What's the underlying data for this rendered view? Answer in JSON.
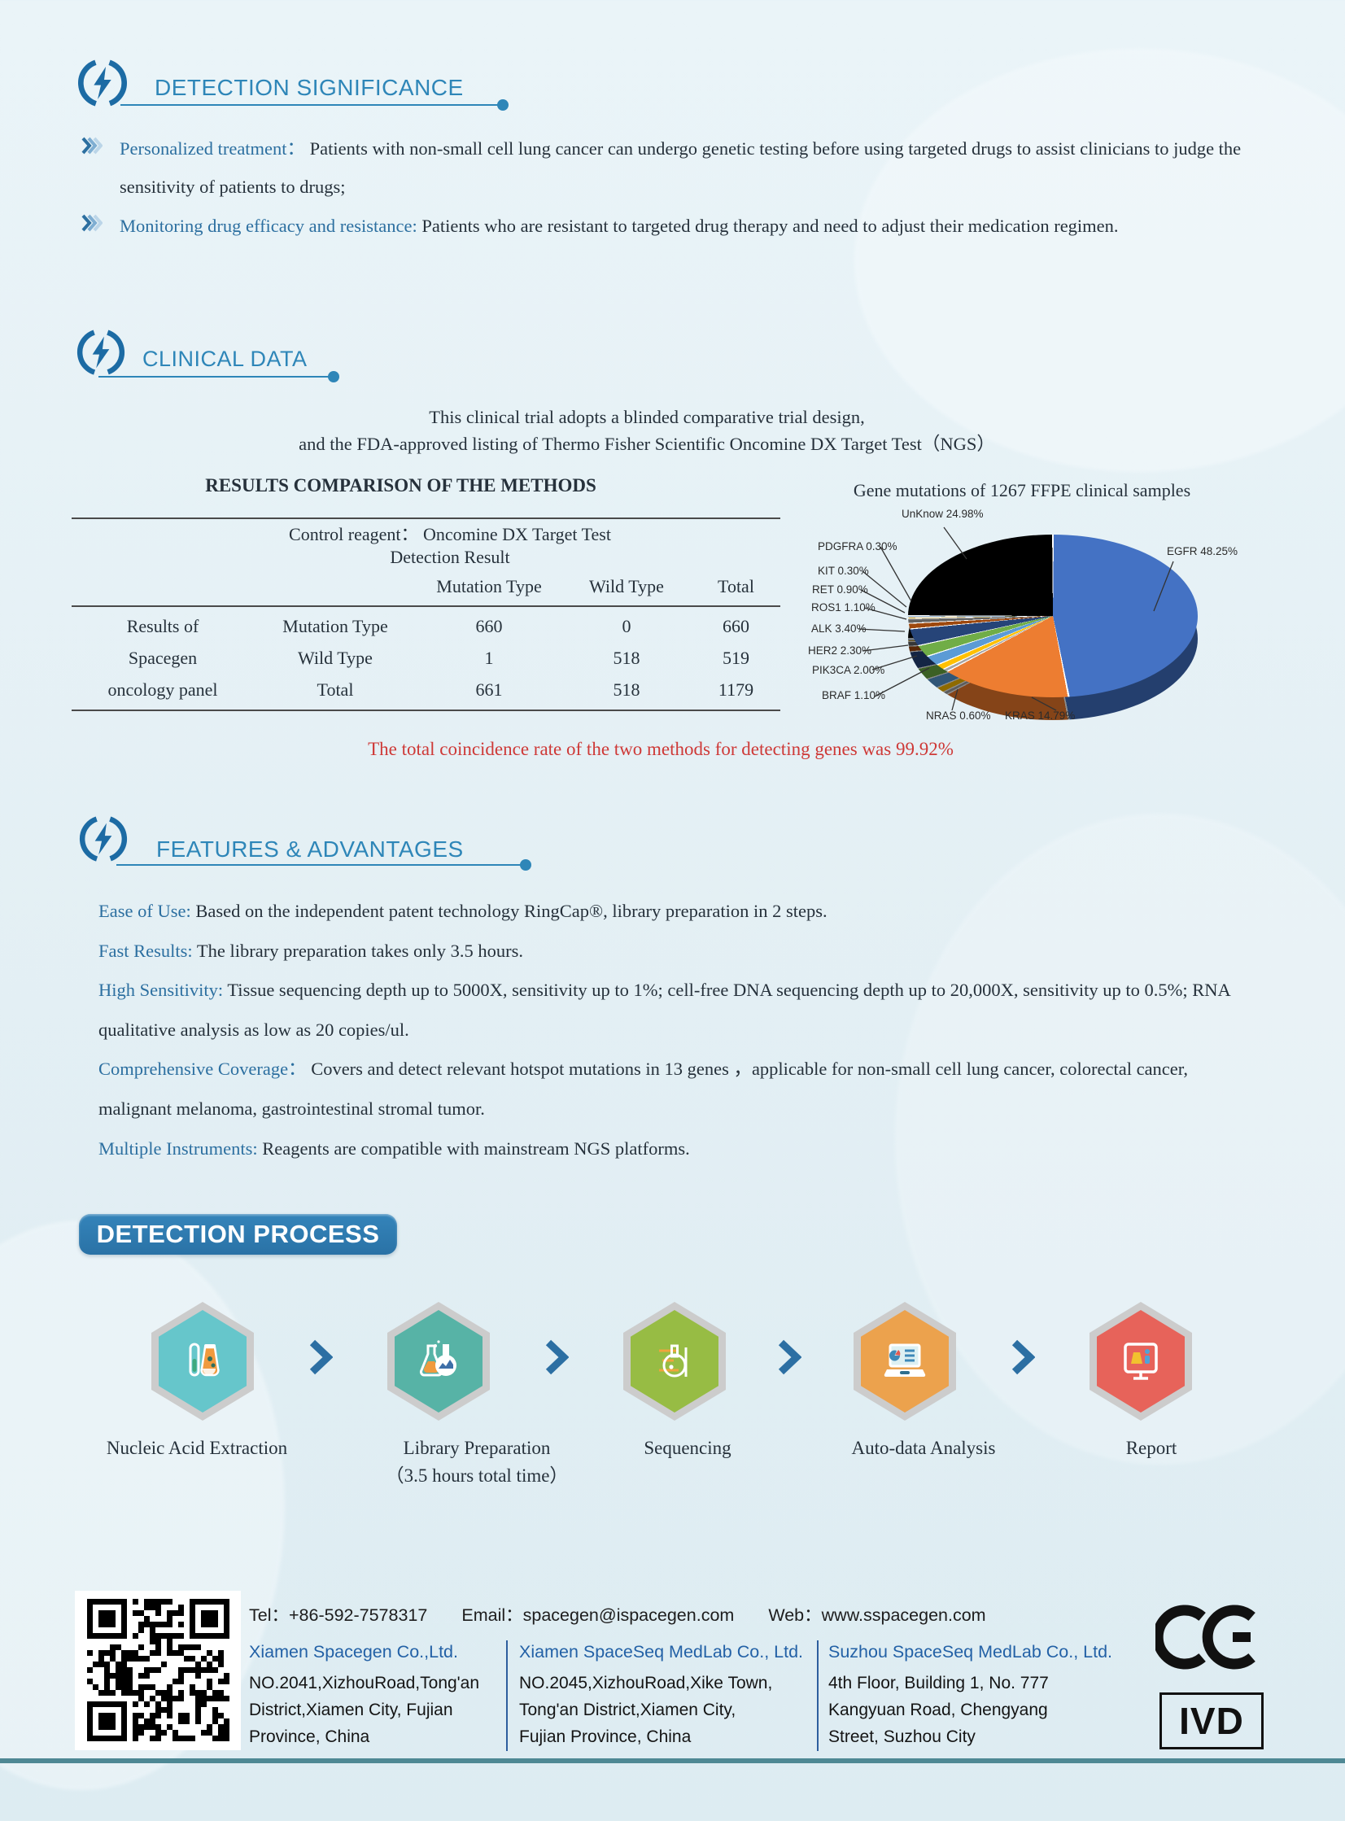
{
  "colors": {
    "header_blue": "#2E86B8",
    "lead_blue": "#2C6FA0",
    "accent_red": "#CE3937",
    "process_arrow": "#2C6FA3",
    "footer_company_blue": "#2361A6",
    "bottom_rule": "#4E8894",
    "hex_border": "#CCCCCC"
  },
  "significance": {
    "title": "DETECTION SIGNIFICANCE",
    "bullets": [
      {
        "lead": "Personalized treatment：",
        "text": "Patients with non-small cell lung cancer can undergo genetic testing before using targeted drugs to assist clinicians to judge the sensitivity of patients to drugs;"
      },
      {
        "lead": "Monitoring drug efficacy and resistance:",
        "text": "Patients who are resistant to targeted drug therapy and need to adjust their medication regimen."
      }
    ]
  },
  "clinical": {
    "title": "CLINICAL DATA",
    "intro_line1": "This clinical trial adopts a blinded comparative trial design,",
    "intro_line2": "and the FDA-approved listing of Thermo Fisher Scientific Oncomine DX Target Test（NGS）",
    "table": {
      "title": "RESULTS COMPARISON OF THE METHODS",
      "control_header_line1": "Control reagent：  Oncomine DX Target Test",
      "control_header_line2": "Detection Result",
      "col_headers": [
        "Mutation Type",
        "Wild Type",
        "Total"
      ],
      "row_group_label_lines": [
        "Results of",
        "Spacegen",
        "oncology panel"
      ],
      "rows": [
        {
          "label": "Mutation Type",
          "values": [
            "660",
            "0",
            "660"
          ]
        },
        {
          "label": "Wild Type",
          "values": [
            "1",
            "518",
            "519"
          ]
        },
        {
          "label": "Total",
          "values": [
            "661",
            "518",
            "1179"
          ]
        }
      ]
    },
    "conclusion": "The total coincidence rate of the two methods for detecting genes was 99.92%"
  },
  "chart_data": {
    "type": "pie",
    "title": "Gene mutations of 1267 FFPE clinical samples",
    "unit": "%",
    "style": "3d-pie",
    "slices": [
      {
        "name": "EGFR",
        "value": 48.25,
        "label": "EGFR  48.25%",
        "color": "#4472C4"
      },
      {
        "name": "KRAS",
        "value": 14.79,
        "label": "KRAS  14.79%",
        "color": "#ED7D31"
      },
      {
        "name": "NRAS",
        "value": 0.6,
        "label": "NRAS  0.60%",
        "color": "#A5A5A5"
      },
      {
        "name": "BRAF",
        "value": 1.1,
        "label": "BRAF  1.10%",
        "color": "#FFC000"
      },
      {
        "name": "PIK3CA",
        "value": 2.0,
        "label": "PIK3CA  2.00%",
        "color": "#5B9BD5"
      },
      {
        "name": "HER2",
        "value": 2.3,
        "label": "HER2  2.30%",
        "color": "#70AD47"
      },
      {
        "name": "ALK",
        "value": 3.4,
        "label": "ALK  3.40%",
        "color": "#264478"
      },
      {
        "name": "ROS1",
        "value": 1.1,
        "label": "ROS1  1.10%",
        "color": "#9E480E"
      },
      {
        "name": "RET",
        "value": 0.9,
        "label": "RET  0.90%",
        "color": "#636363"
      },
      {
        "name": "KIT",
        "value": 0.3,
        "label": "KIT  0.30%",
        "color": "#997300"
      },
      {
        "name": "PDGFRA",
        "value": 0.3,
        "label": "PDGFRA 0.30%",
        "color": "#255E91"
      },
      {
        "name": "UnKnow",
        "value": 24.98,
        "label": "UnKnow 24.98%",
        "color": "#000000"
      }
    ]
  },
  "features": {
    "title": "FEATURES & ADVANTAGES",
    "items": [
      {
        "lead": "Ease of Use:",
        "text": "Based on the independent patent technology RingCap®, library preparation in 2 steps."
      },
      {
        "lead": "Fast Results:",
        "text": "The library preparation takes only 3.5 hours."
      },
      {
        "lead": "High Sensitivity:",
        "text": "Tissue sequencing depth up to 5000X, sensitivity up to 1%; cell-free DNA sequencing depth up to 20,000X, sensitivity up to 0.5%; RNA qualitative analysis as low as 20 copies/ul."
      },
      {
        "lead": "Comprehensive Coverage：",
        "text": "Covers and detect relevant hotspot mutations in 13 genes ，applicable for non-small cell lung cancer, colorectal cancer, malignant melanoma, gastrointestinal stromal tumor."
      },
      {
        "lead": "Multiple Instruments:",
        "text": "Reagents are compatible with mainstream NGS platforms."
      }
    ]
  },
  "process": {
    "title": "DETECTION PROCESS",
    "steps": [
      {
        "label": "Nucleic Acid Extraction",
        "sublabel": "",
        "icon": "test-tubes-icon",
        "color": "#66C6CB"
      },
      {
        "label": "Library Preparation",
        "sublabel": "（3.5 hours total time）",
        "icon": "flasks-icon",
        "color": "#57B3A6"
      },
      {
        "label": "Sequencing",
        "sublabel": "",
        "icon": "round-flask-icon",
        "color": "#97BC44"
      },
      {
        "label": "Auto-data Analysis",
        "sublabel": "",
        "icon": "laptop-chart-icon",
        "color": "#ECA24D"
      },
      {
        "label": "Report",
        "sublabel": "",
        "icon": "monitor-report-icon",
        "color": "#E7635A"
      }
    ]
  },
  "footer": {
    "tel_label": "Tel：",
    "tel": "+86-592-7578317",
    "email_label": "Email：",
    "email": "spacegen@ispacegen.com",
    "web_label": "Web：",
    "web": "www.sspacegen.com",
    "companies": [
      {
        "name": "Xiamen Spacegen Co.,Ltd.",
        "address": "NO.2041,XizhouRoad,Tong'an\nDistrict,Xiamen City,  Fujian\nProvince, China"
      },
      {
        "name": "Xiamen SpaceSeq MedLab Co., Ltd.",
        "address": "NO.2045,XizhouRoad,Xike Town,\nTong'an District,Xiamen City,\nFujian Province, China"
      },
      {
        "name": "Suzhou SpaceSeq MedLab Co., Ltd.",
        "address": "4th Floor, Building 1, No. 777\nKangyuan Road, Chengyang\nStreet, Suzhou City"
      }
    ],
    "ce_label": "CE",
    "ivd_label": "IVD"
  }
}
